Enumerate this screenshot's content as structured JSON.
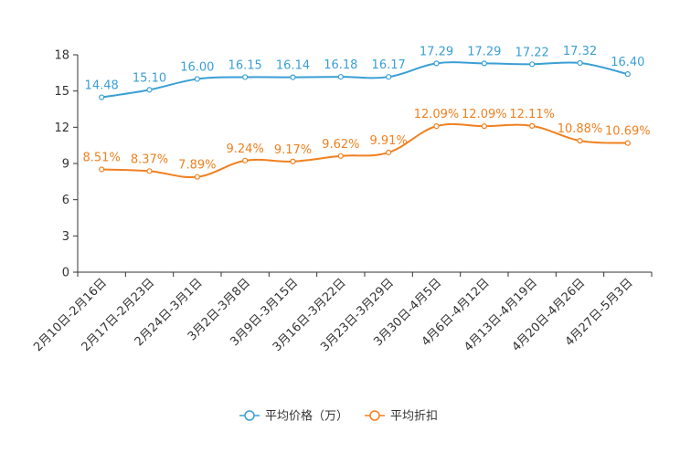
{
  "chart_data": {
    "type": "line",
    "title": "",
    "xlabel": "",
    "ylabel": "",
    "ylim": [
      0,
      18
    ],
    "yticks": [
      0,
      3,
      6,
      9,
      12,
      15,
      18
    ],
    "grid": false,
    "legend_position": "bottom-center",
    "categories": [
      "2月10日-2月16日",
      "2月17日-2月23日",
      "2月24日-3月1日",
      "3月2日-3月8日",
      "3月9日-3月15日",
      "3月16日-3月22日",
      "3月23日-3月29日",
      "3月30日-4月5日",
      "4月6日-4月12日",
      "4月13日-4月19日",
      "4月20日-4月26日",
      "4月27日-5月3日"
    ],
    "series": [
      {
        "name": "平均价格（万）",
        "color": "#3a9fd5",
        "values": [
          14.48,
          15.1,
          16.0,
          16.15,
          16.14,
          16.18,
          16.17,
          17.29,
          17.29,
          17.22,
          17.32,
          16.4
        ],
        "labels": [
          "14.48",
          "15.10",
          "16.00",
          "16.15",
          "16.14",
          "16.18",
          "16.17",
          "17.29",
          "17.29",
          "17.22",
          "17.32",
          "16.40"
        ]
      },
      {
        "name": "平均折扣",
        "color": "#f0801f",
        "values": [
          8.51,
          8.37,
          7.89,
          9.24,
          9.17,
          9.62,
          9.91,
          12.09,
          12.09,
          12.11,
          10.88,
          10.69
        ],
        "labels": [
          "8.51%",
          "8.37%",
          "7.89%",
          "9.24%",
          "9.17%",
          "9.62%",
          "9.91%",
          "12.09%",
          "12.09%",
          "12.11%",
          "10.88%",
          "10.69%"
        ]
      }
    ]
  }
}
